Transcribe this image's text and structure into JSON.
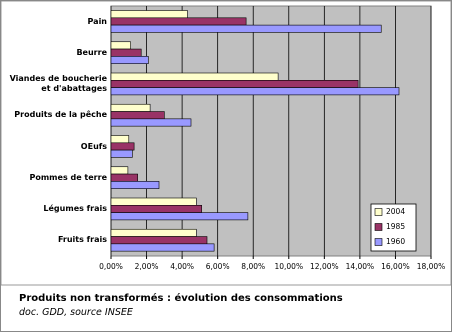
{
  "chart_data": {
    "type": "hbar",
    "title": "Produits non transformés : évolution des consommations",
    "subtitle": "doc. GDD, source INSEE",
    "categories": [
      "Pain",
      "Beurre",
      "Viandes de boucherie et d'abattages",
      "Produits de la pêche",
      "OEufs",
      "Pommes de terre",
      "Légumes frais",
      "Fruits frais"
    ],
    "series": [
      {
        "name": "2004",
        "color": "#ffffcc",
        "values": [
          4.3,
          1.1,
          9.4,
          2.2,
          1.0,
          0.95,
          4.8,
          4.8
        ]
      },
      {
        "name": "1985",
        "color": "#993366",
        "values": [
          7.6,
          1.7,
          13.9,
          3.0,
          1.3,
          1.5,
          5.1,
          5.4
        ]
      },
      {
        "name": "1960",
        "color": "#9999ff",
        "values": [
          15.2,
          2.1,
          16.2,
          4.5,
          1.2,
          2.7,
          7.7,
          5.8
        ]
      }
    ],
    "xlim": [
      0,
      18
    ],
    "xticks": [
      {
        "value": 0,
        "label": "0,00%"
      },
      {
        "value": 2,
        "label": "2,00%"
      },
      {
        "value": 4,
        "label": "4,00%"
      },
      {
        "value": 6,
        "label": "6,00%"
      },
      {
        "value": 8,
        "label": "8,00%"
      },
      {
        "value": 10,
        "label": "10,00%"
      },
      {
        "value": 12,
        "label": "12,00%"
      },
      {
        "value": 14,
        "label": "14,00%"
      },
      {
        "value": 16,
        "label": "16,00%"
      },
      {
        "value": 18,
        "label": "18,00%"
      }
    ],
    "grid": true,
    "legend": "bottom-right"
  }
}
